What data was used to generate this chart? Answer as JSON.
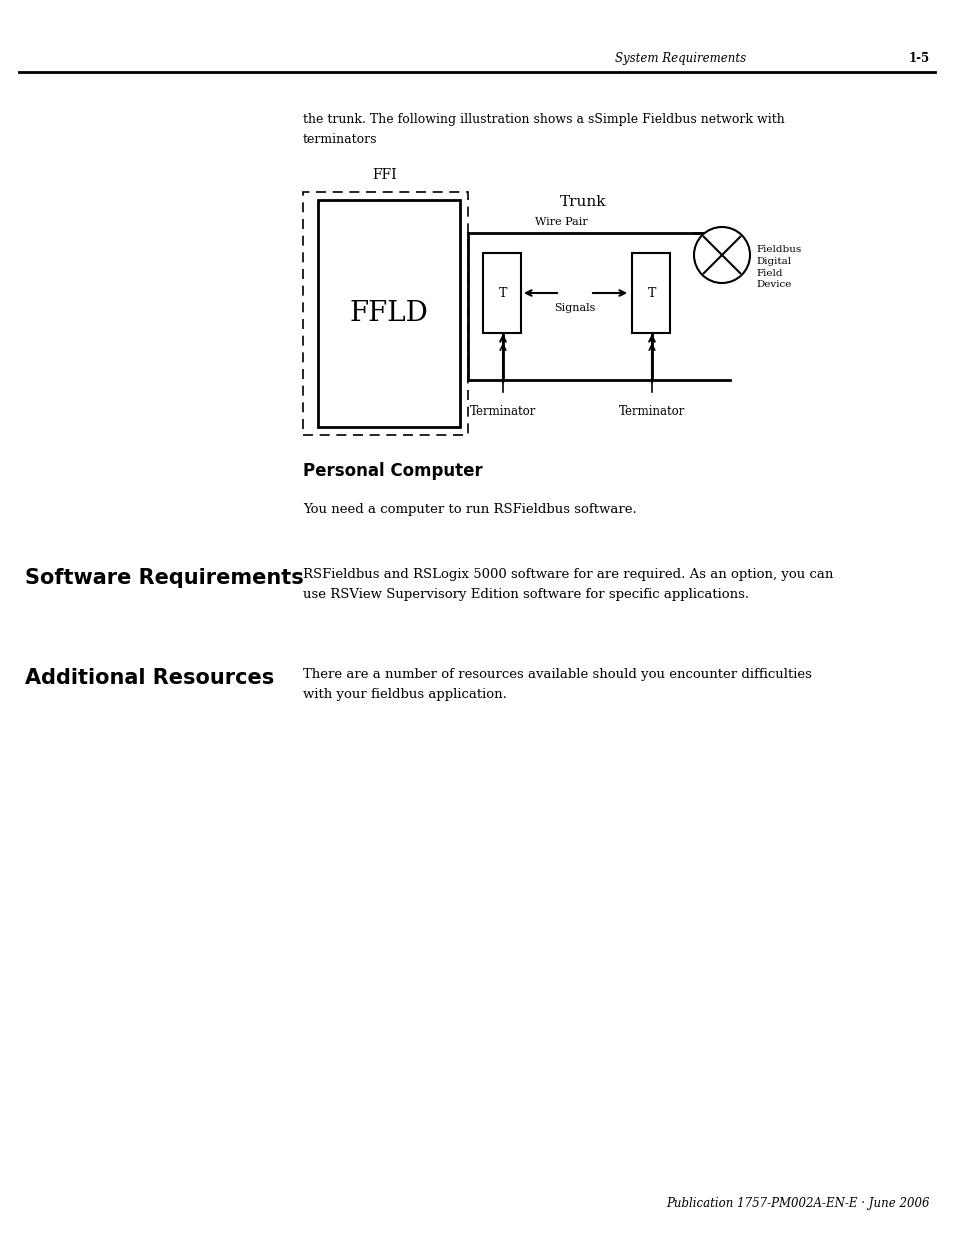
{
  "page_header_left": "System Requirements",
  "page_header_right": "1-5",
  "intro_text_line1": "the trunk. The following illustration shows a sSimple Fieldbus network with",
  "intro_text_line2": "terminators",
  "ffi_label": "FFI",
  "trunk_label": "Trunk",
  "wire_pair_label": "Wire Pair",
  "ffld_label": "FFLD",
  "signals_label": "Signals",
  "terminator1_label": "Terminator",
  "terminator2_label": "Terminator",
  "fieldbus_label": "Fieldbus\nDigital\nField\nDevice",
  "personal_computer_heading": "Personal Computer",
  "personal_computer_text": "You need a computer to run RSFieldbus software.",
  "software_req_heading": "Software Requirements",
  "software_req_text_line1": "RSFieldbus and RSLogix 5000 software for are required. As an option, you can",
  "software_req_text_line2": "use RSView Supervisory Edition software for specific applications.",
  "additional_resources_heading": "Additional Resources",
  "additional_resources_text_line1": "There are a number of resources available should you encounter difficulties",
  "additional_resources_text_line2": "with your fieldbus application.",
  "footer_text": "Publication 1757-PM002A-EN-E · June 2006",
  "bg_color": "#ffffff",
  "text_color": "#000000"
}
